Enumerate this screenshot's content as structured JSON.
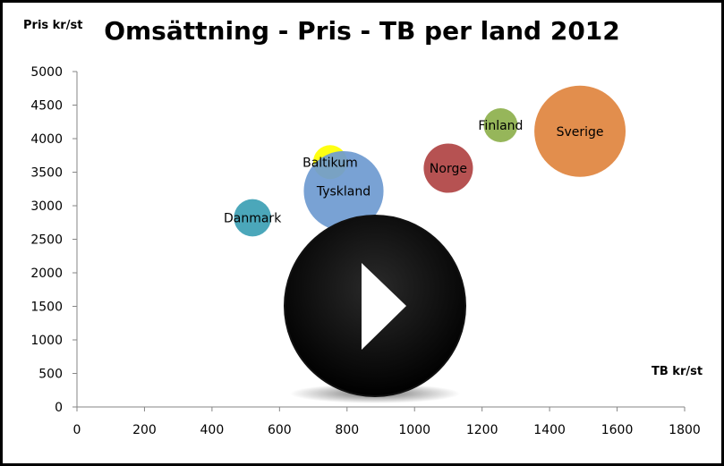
{
  "chart_data": {
    "type": "scatter",
    "title": "Omsättning - Pris - TB per land 2012",
    "xlabel": "TB kr/st",
    "ylabel": "Pris kr/st",
    "xlim": [
      0,
      1800
    ],
    "ylim": [
      0,
      5000
    ],
    "xticks": [
      "0",
      "200",
      "400",
      "600",
      "800",
      "1000",
      "1200",
      "1400",
      "1600",
      "1800"
    ],
    "yticks": [
      "0",
      "500",
      "1000",
      "1500",
      "2000",
      "2500",
      "3000",
      "3500",
      "4000",
      "4500",
      "5000"
    ],
    "grid": false,
    "bubbles": [
      {
        "name": "Baltikum",
        "x": 750,
        "y": 3650,
        "size": 1,
        "color": "#ffff00"
      },
      {
        "name": "Tyskland",
        "x": 790,
        "y": 3220,
        "size": 5.5,
        "color": "#6f9bd1"
      },
      {
        "name": "Danmark",
        "x": 520,
        "y": 2820,
        "size": 1.2,
        "color": "#3da0b5"
      },
      {
        "name": "Norge",
        "x": 1100,
        "y": 3560,
        "size": 2.1,
        "color": "#b04545"
      },
      {
        "name": "Finland",
        "x": 1255,
        "y": 4200,
        "size": 1,
        "color": "#8eb04e"
      },
      {
        "name": "Sverige",
        "x": 1490,
        "y": 4110,
        "size": 7.2,
        "color": "#e0853f"
      }
    ]
  },
  "overlay": {
    "play_icon": "play-icon"
  }
}
